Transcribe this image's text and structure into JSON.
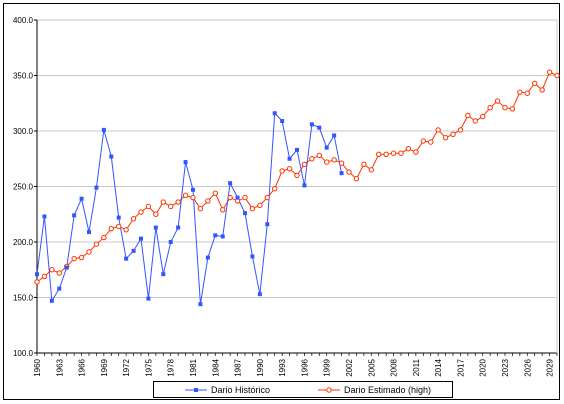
{
  "chart_data": {
    "type": "line",
    "title": "",
    "xlabel": "",
    "ylabel": "",
    "xlim": [
      1960,
      2030
    ],
    "ylim": [
      100,
      400
    ],
    "y_ticks": [
      100,
      150,
      200,
      250,
      300,
      350,
      400
    ],
    "y_tick_labels": [
      "100.0",
      "150.0",
      "200.0",
      "250.0",
      "300.0",
      "350.0",
      "400.0"
    ],
    "x_ticks": [
      1960,
      1963,
      1966,
      1969,
      1972,
      1975,
      1978,
      1981,
      1984,
      1987,
      1990,
      1993,
      1996,
      1999,
      2002,
      2005,
      2008,
      2011,
      2014,
      2017,
      2020,
      2023,
      2026,
      2029
    ],
    "grid": true,
    "legend_position": "bottom",
    "series": [
      {
        "name": "Dario Histórico",
        "color": "#3355ff",
        "marker": "square",
        "x": [
          1960,
          1961,
          1962,
          1963,
          1964,
          1965,
          1966,
          1967,
          1968,
          1969,
          1970,
          1971,
          1972,
          1973,
          1974,
          1975,
          1976,
          1977,
          1978,
          1979,
          1980,
          1981,
          1982,
          1983,
          1984,
          1985,
          1986,
          1987,
          1988,
          1989,
          1990,
          1991,
          1992,
          1993,
          1994,
          1995,
          1996,
          1997,
          1998,
          1999,
          2000,
          2001
        ],
        "values": [
          171,
          223,
          147,
          158,
          177,
          224,
          239,
          209,
          249,
          301,
          277,
          222,
          185,
          192,
          203,
          149,
          213,
          171,
          200,
          213,
          272,
          247,
          144,
          186,
          206,
          205,
          253,
          240,
          226,
          187,
          153,
          216,
          316,
          309,
          275,
          283,
          251,
          306,
          303,
          285,
          296,
          262
        ]
      },
      {
        "name": "Dario Estimado (high)",
        "color": "#ff3300",
        "marker": "circle",
        "x": [
          1960,
          1961,
          1962,
          1963,
          1964,
          1965,
          1966,
          1967,
          1968,
          1969,
          1970,
          1971,
          1972,
          1973,
          1974,
          1975,
          1976,
          1977,
          1978,
          1979,
          1980,
          1981,
          1982,
          1983,
          1984,
          1985,
          1986,
          1987,
          1988,
          1989,
          1990,
          1991,
          1992,
          1993,
          1994,
          1995,
          1996,
          1997,
          1998,
          1999,
          2000,
          2001,
          2002,
          2003,
          2004,
          2005,
          2006,
          2007,
          2008,
          2009,
          2010,
          2011,
          2012,
          2013,
          2014,
          2015,
          2016,
          2017,
          2018,
          2019,
          2020,
          2021,
          2022,
          2023,
          2024,
          2025,
          2026,
          2027,
          2028,
          2029,
          2030
        ],
        "values": [
          164,
          169,
          175,
          172,
          178,
          185,
          186,
          191,
          198,
          204,
          212,
          214,
          211,
          221,
          227,
          232,
          225,
          236,
          232,
          236,
          242,
          240,
          230,
          237,
          244,
          229,
          240,
          237,
          240,
          230,
          233,
          240,
          248,
          264,
          266,
          260,
          270,
          275,
          278,
          272,
          274,
          271,
          263,
          257,
          270,
          265,
          279,
          279,
          280,
          280,
          284,
          281,
          291,
          290,
          301,
          294,
          297,
          301,
          314,
          309,
          313,
          321,
          327,
          321,
          320,
          335,
          334,
          343,
          337,
          353,
          350
        ]
      }
    ]
  }
}
